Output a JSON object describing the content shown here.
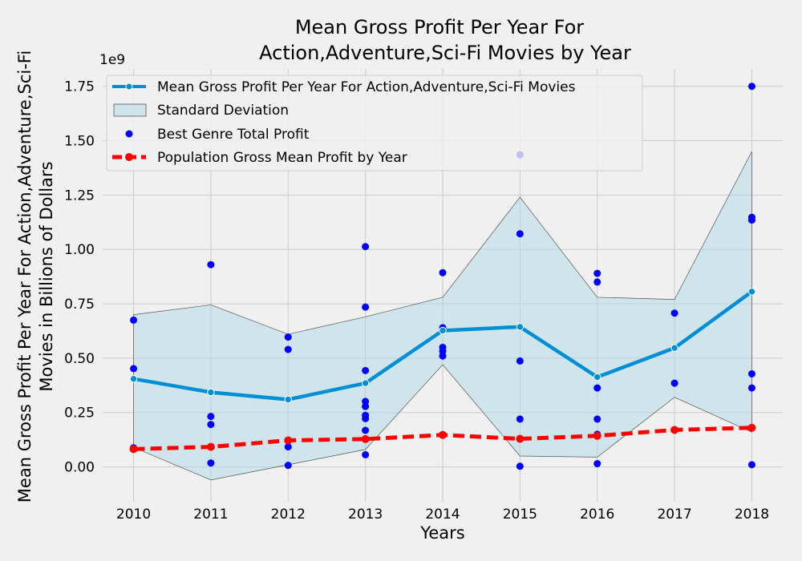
{
  "chart_data": {
    "type": "line",
    "title_lines": [
      "Mean Gross Profit Per Year For",
      "Action,Adventure,Sci-Fi Movies by Year"
    ],
    "xlabel": "Years",
    "ylabel_lines": [
      "Mean Gross Profit Per Year For Action,Adventure,Sci-Fi",
      "Movies in Billions of Dollars"
    ],
    "y_offset_text": "1e9",
    "xlim": [
      2009.6,
      2018.4
    ],
    "ylim": [
      -0.16,
      1.83
    ],
    "x_ticks": [
      2010,
      2011,
      2012,
      2013,
      2014,
      2015,
      2016,
      2017,
      2018
    ],
    "x_tick_labels": [
      "2010",
      "2011",
      "2012",
      "2013",
      "2014",
      "2015",
      "2016",
      "2017",
      "2018"
    ],
    "y_ticks": [
      0.0,
      0.25,
      0.5,
      0.75,
      1.0,
      1.25,
      1.5,
      1.75
    ],
    "y_tick_labels": [
      "0.00",
      "0.25",
      "0.50",
      "0.75",
      "1.00",
      "1.25",
      "1.50",
      "1.75"
    ],
    "grid": true,
    "legend_position": "top-left",
    "legend": [
      "Mean Gross Profit Per Year For Action,Adventure,Sci-Fi Movies",
      "Standard Deviation",
      "Best Genre Total Profit",
      "Population Gross Mean Profit by Year"
    ],
    "colors": {
      "mean_line": "#008fd5",
      "std_fill": "#add8e6",
      "std_edge": "#555555",
      "scatter": "#0000ff",
      "population": "#ff0000",
      "grid": "#cbcbcb",
      "background": "#f0f0f0"
    },
    "years": [
      2010,
      2011,
      2012,
      2013,
      2014,
      2015,
      2016,
      2017,
      2018
    ],
    "mean_profit": [
      0.405,
      0.343,
      0.31,
      0.385,
      0.627,
      0.644,
      0.413,
      0.547,
      0.806
    ],
    "std_upper": [
      0.7,
      0.745,
      0.61,
      0.69,
      0.78,
      1.24,
      0.78,
      0.77,
      1.45
    ],
    "std_lower": [
      0.09,
      -0.06,
      0.01,
      0.08,
      0.47,
      0.05,
      0.045,
      0.32,
      0.16
    ],
    "population_mean": [
      0.082,
      0.092,
      0.122,
      0.128,
      0.147,
      0.129,
      0.143,
      0.17,
      0.18
    ],
    "scatter_points": [
      [
        2010,
        0.675
      ],
      [
        2010,
        0.452
      ],
      [
        2010,
        0.088
      ],
      [
        2011,
        0.93
      ],
      [
        2011,
        0.232
      ],
      [
        2011,
        0.195
      ],
      [
        2011,
        0.018
      ],
      [
        2012,
        0.597
      ],
      [
        2012,
        0.54
      ],
      [
        2012,
        0.092
      ],
      [
        2012,
        0.007
      ],
      [
        2013,
        1.013
      ],
      [
        2013,
        0.735
      ],
      [
        2013,
        0.443
      ],
      [
        2013,
        0.301
      ],
      [
        2013,
        0.278
      ],
      [
        2013,
        0.237
      ],
      [
        2013,
        0.222
      ],
      [
        2013,
        0.168
      ],
      [
        2013,
        0.056
      ],
      [
        2014,
        0.893
      ],
      [
        2014,
        0.64
      ],
      [
        2014,
        0.55
      ],
      [
        2014,
        0.532
      ],
      [
        2014,
        0.51
      ],
      [
        2015,
        1.435
      ],
      [
        2015,
        1.072
      ],
      [
        2015,
        0.487
      ],
      [
        2015,
        0.22
      ],
      [
        2015,
        0.003
      ],
      [
        2016,
        0.89
      ],
      [
        2016,
        0.85
      ],
      [
        2016,
        0.363
      ],
      [
        2016,
        0.22
      ],
      [
        2016,
        0.15
      ],
      [
        2016,
        0.015
      ],
      [
        2017,
        0.707
      ],
      [
        2017,
        0.385
      ],
      [
        2018,
        1.75
      ],
      [
        2018,
        1.148
      ],
      [
        2018,
        1.135
      ],
      [
        2018,
        0.428
      ],
      [
        2018,
        0.363
      ],
      [
        2018,
        0.01
      ]
    ]
  }
}
